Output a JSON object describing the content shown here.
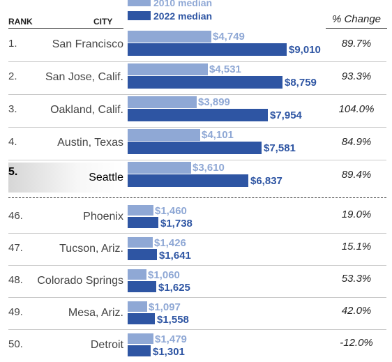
{
  "legend": {
    "label_2010": "2010 median",
    "label_2022": "2022 median",
    "color_2010": "#8fa8d5",
    "color_2022": "#2e55a3"
  },
  "headers": {
    "rank": "RANK",
    "city": "CITY",
    "change": "% Change"
  },
  "chart_data": {
    "type": "bar",
    "title": "",
    "categories": [
      "San Francisco",
      "San Jose, Calif.",
      "Oakland, Calif.",
      "Austin, Texas",
      "Seattle",
      "Phoenix",
      "Tucson, Ariz.",
      "Colorado Springs",
      "Mesa, Ariz.",
      "Detroit"
    ],
    "series": [
      {
        "name": "2010 median",
        "values": [
          4749,
          4531,
          3899,
          4101,
          3610,
          1460,
          1426,
          1060,
          1097,
          1479
        ]
      },
      {
        "name": "2022 median",
        "values": [
          9010,
          8759,
          7954,
          7581,
          6837,
          1738,
          1641,
          1625,
          1558,
          1301
        ]
      }
    ],
    "rows": [
      {
        "rank": "1.",
        "city": "San Francisco",
        "v2010": "$4,749",
        "v2022": "$9,010",
        "change": "89.7%",
        "highlight": false
      },
      {
        "rank": "2.",
        "city": "San Jose, Calif.",
        "v2010": "$4,531",
        "v2022": "$8,759",
        "change": "93.3%",
        "highlight": false
      },
      {
        "rank": "3.",
        "city": "Oakland, Calif.",
        "v2010": "$3,899",
        "v2022": "$7,954",
        "change": "104.0%",
        "highlight": false
      },
      {
        "rank": "4.",
        "city": "Austin, Texas",
        "v2010": "$4,101",
        "v2022": "$7,581",
        "change": "84.9%",
        "highlight": false
      },
      {
        "rank": "5.",
        "city": "Seattle",
        "v2010": "$3,610",
        "v2022": "$6,837",
        "change": "89.4%",
        "highlight": true
      },
      {
        "rank": "46.",
        "city": "Phoenix",
        "v2010": "$1,460",
        "v2022": "$1,738",
        "change": "19.0%",
        "highlight": false
      },
      {
        "rank": "47.",
        "city": "Tucson, Ariz.",
        "v2010": "$1,426",
        "v2022": "$1,641",
        "change": "15.1%",
        "highlight": false
      },
      {
        "rank": "48.",
        "city": "Colorado Springs",
        "v2010": "$1,060",
        "v2022": "$1,625",
        "change": "53.3%",
        "highlight": false
      },
      {
        "rank": "49.",
        "city": "Mesa, Ariz.",
        "v2010": "$1,097",
        "v2022": "$1,558",
        "change": "42.0%",
        "highlight": false
      },
      {
        "rank": "50.",
        "city": "Detroit",
        "v2010": "$1,479",
        "v2022": "$1,301",
        "change": "-12.0%",
        "highlight": false
      }
    ]
  }
}
